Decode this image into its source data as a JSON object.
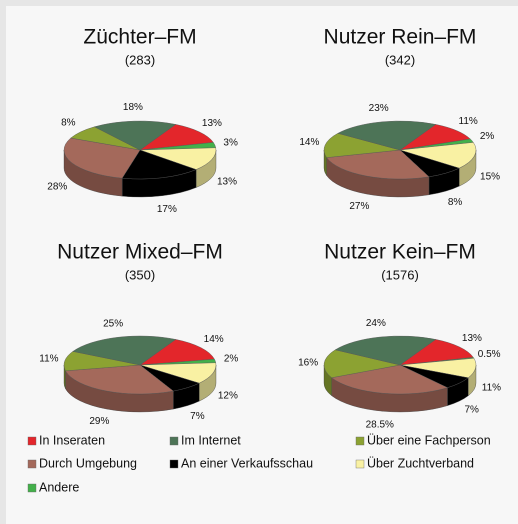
{
  "chart_data": [
    {
      "type": "pie",
      "title": "Züchter–FM",
      "subtitle": "(283)",
      "categories": [
        "In Inseraten",
        "Im Internet",
        "Über eine Fachperson",
        "Durch Umgebung",
        "An einer Verkaufsschau",
        "Über Zuchtverband",
        "Andere"
      ],
      "values": [
        13,
        18,
        8,
        28,
        17,
        13,
        3
      ],
      "value_labels": [
        "13%",
        "18%",
        "8%",
        "28%",
        "17%",
        "13%",
        "3%"
      ],
      "colors": [
        "#e3262b",
        "#4d7457",
        "#8ca232",
        "#a4695b",
        "#000000",
        "#f9f1a3",
        "#43b04a"
      ]
    },
    {
      "type": "pie",
      "title": "Nutzer Rein–FM",
      "subtitle": "(342)",
      "categories": [
        "In Inseraten",
        "Im Internet",
        "Über eine Fachperson",
        "Durch Umgebung",
        "An einer Verkaufsschau",
        "Über Zuchtverband",
        "Andere"
      ],
      "values": [
        11,
        23,
        14,
        27,
        8,
        15,
        2
      ],
      "value_labels": [
        "11%",
        "23%",
        "14%",
        "27%",
        "8%",
        "15%",
        "2%"
      ],
      "colors": [
        "#e3262b",
        "#4d7457",
        "#8ca232",
        "#a4695b",
        "#000000",
        "#f9f1a3",
        "#43b04a"
      ]
    },
    {
      "type": "pie",
      "title": "Nutzer Mixed–FM",
      "subtitle": "(350)",
      "categories": [
        "In Inseraten",
        "Im Internet",
        "Über eine Fachperson",
        "Durch Umgebung",
        "An einer Verkaufsschau",
        "Über Zuchtverband",
        "Andere"
      ],
      "values": [
        14,
        25,
        11,
        29,
        7,
        12,
        2
      ],
      "value_labels": [
        "14%",
        "25%",
        "11%",
        "29%",
        "7%",
        "12%",
        "2%"
      ],
      "colors": [
        "#e3262b",
        "#4d7457",
        "#8ca232",
        "#a4695b",
        "#000000",
        "#f9f1a3",
        "#43b04a"
      ]
    },
    {
      "type": "pie",
      "title": "Nutzer Kein–FM",
      "subtitle": "(1576)",
      "categories": [
        "In Inseraten",
        "Im Internet",
        "Über eine Fachperson",
        "Durch Umgebung",
        "An einer Verkaufsschau",
        "Über Zuchtverband",
        "Andere"
      ],
      "values": [
        13,
        24,
        16,
        28.5,
        7,
        11,
        0.5
      ],
      "value_labels": [
        "13%",
        "24%",
        "16%",
        "28.5%",
        "7%",
        "11%",
        "0.5%"
      ],
      "colors": [
        "#e3262b",
        "#4d7457",
        "#8ca232",
        "#a4695b",
        "#000000",
        "#f9f1a3",
        "#43b04a"
      ]
    }
  ]
}
